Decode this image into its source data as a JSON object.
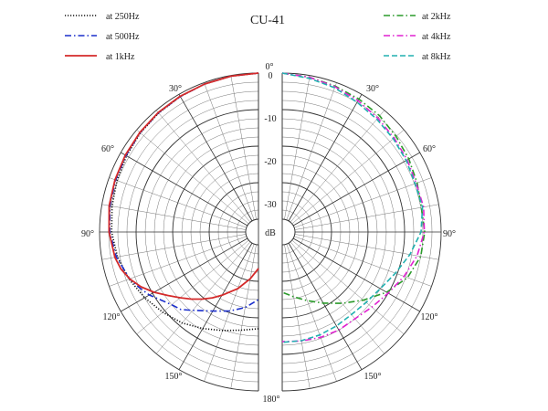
{
  "chart_data": {
    "type": "polar",
    "title": "CU-41",
    "center_label": "dB",
    "angle_labels": [
      "0°",
      "30°",
      "60°",
      "90°",
      "120°",
      "150°",
      "180°"
    ],
    "radial_ticks": [
      "0",
      "-10",
      "-20",
      "-30"
    ],
    "radial_range_db": [
      -40,
      0
    ],
    "angle_range_deg": [
      0,
      180
    ],
    "grid": true,
    "left_half_series": [
      "at 250Hz",
      "at 500Hz",
      "at 1kHz"
    ],
    "right_half_series": [
      "at 2kHz",
      "at 4kHz",
      "at 8kHz"
    ],
    "series": [
      {
        "name": "at 250Hz",
        "color": "#111111",
        "dash": "dotted",
        "side": "left",
        "points": [
          [
            0,
            0
          ],
          [
            10,
            -0.2
          ],
          [
            20,
            -0.4
          ],
          [
            30,
            -0.7
          ],
          [
            40,
            -1.0
          ],
          [
            50,
            -1.3
          ],
          [
            60,
            -1.8
          ],
          [
            70,
            -2.3
          ],
          [
            80,
            -2.8
          ],
          [
            90,
            -3.3
          ],
          [
            100,
            -4.3
          ],
          [
            110,
            -5.8
          ],
          [
            120,
            -7.5
          ],
          [
            130,
            -9.3
          ],
          [
            140,
            -11.0
          ],
          [
            150,
            -13.0
          ],
          [
            160,
            -14.8
          ],
          [
            170,
            -16.2
          ],
          [
            180,
            -17.0
          ]
        ]
      },
      {
        "name": "at 500Hz",
        "color": "#1a2ecc",
        "dash": "dashdot",
        "side": "left",
        "points": [
          [
            0,
            0
          ],
          [
            10,
            -0.2
          ],
          [
            20,
            -0.4
          ],
          [
            30,
            -0.7
          ],
          [
            40,
            -0.9
          ],
          [
            50,
            -1.2
          ],
          [
            60,
            -1.6
          ],
          [
            70,
            -1.9
          ],
          [
            80,
            -2.2
          ],
          [
            90,
            -2.8
          ],
          [
            100,
            -4.0
          ],
          [
            110,
            -6.0
          ],
          [
            115,
            -7.5
          ],
          [
            120,
            -9.0
          ],
          [
            125,
            -11.0
          ],
          [
            130,
            -12.5
          ],
          [
            135,
            -13.5
          ],
          [
            140,
            -15.5
          ],
          [
            150,
            -18.5
          ],
          [
            160,
            -20.5
          ],
          [
            170,
            -22.5
          ],
          [
            180,
            -25.0
          ]
        ]
      },
      {
        "name": "at 1kHz",
        "color": "#d42a2a",
        "dash": "solid",
        "side": "left",
        "points": [
          [
            0,
            0
          ],
          [
            10,
            -0.2
          ],
          [
            20,
            -0.4
          ],
          [
            30,
            -0.6
          ],
          [
            40,
            -0.8
          ],
          [
            50,
            -1.1
          ],
          [
            60,
            -1.4
          ],
          [
            70,
            -1.7
          ],
          [
            80,
            -2.0
          ],
          [
            90,
            -2.6
          ],
          [
            100,
            -3.6
          ],
          [
            105,
            -4.5
          ],
          [
            110,
            -6.0
          ],
          [
            115,
            -8.0
          ],
          [
            120,
            -10.5
          ],
          [
            125,
            -13.2
          ],
          [
            130,
            -15.5
          ],
          [
            135,
            -17.5
          ],
          [
            140,
            -19.5
          ],
          [
            145,
            -21.5
          ],
          [
            150,
            -23.5
          ],
          [
            160,
            -27.0
          ],
          [
            170,
            -30.5
          ],
          [
            180,
            -33.5
          ]
        ]
      },
      {
        "name": "at 2kHz",
        "color": "#2a9a2a",
        "dash": "dashdot",
        "side": "right",
        "points": [
          [
            0,
            0
          ],
          [
            10,
            -0.5
          ],
          [
            20,
            -1.0
          ],
          [
            30,
            -1.5
          ],
          [
            40,
            -2.0
          ],
          [
            50,
            -2.8
          ],
          [
            60,
            -3.5
          ],
          [
            70,
            -4.2
          ],
          [
            80,
            -4.8
          ],
          [
            90,
            -4.5
          ],
          [
            100,
            -5.0
          ],
          [
            110,
            -7.0
          ],
          [
            120,
            -10.5
          ],
          [
            130,
            -14.5
          ],
          [
            140,
            -18.0
          ],
          [
            150,
            -21.0
          ],
          [
            160,
            -23.5
          ],
          [
            170,
            -25.5
          ],
          [
            180,
            -27.0
          ]
        ]
      },
      {
        "name": "at 4kHz",
        "color": "#e020d0",
        "dash": "dashdot",
        "side": "right",
        "points": [
          [
            0,
            0
          ],
          [
            10,
            -0.5
          ],
          [
            20,
            -1.2
          ],
          [
            30,
            -2.0
          ],
          [
            40,
            -2.8
          ],
          [
            50,
            -3.5
          ],
          [
            60,
            -4.0
          ],
          [
            70,
            -4.5
          ],
          [
            80,
            -4.2
          ],
          [
            90,
            -4.6
          ],
          [
            100,
            -6.0
          ],
          [
            110,
            -8.0
          ],
          [
            120,
            -10.0
          ],
          [
            130,
            -11.5
          ],
          [
            140,
            -12.5
          ],
          [
            150,
            -12.5
          ],
          [
            160,
            -12.8
          ],
          [
            170,
            -13.2
          ],
          [
            180,
            -13.5
          ]
        ]
      },
      {
        "name": "at 8kHz",
        "color": "#20b0b0",
        "dash": "dashed",
        "side": "right",
        "points": [
          [
            0,
            0
          ],
          [
            10,
            -0.8
          ],
          [
            20,
            -1.5
          ],
          [
            30,
            -2.5
          ],
          [
            40,
            -3.2
          ],
          [
            50,
            -3.8
          ],
          [
            60,
            -4.3
          ],
          [
            70,
            -4.8
          ],
          [
            80,
            -4.5
          ],
          [
            90,
            -5.5
          ],
          [
            100,
            -8.0
          ],
          [
            110,
            -10.5
          ],
          [
            120,
            -12.5
          ],
          [
            130,
            -13.5
          ],
          [
            140,
            -14.0
          ],
          [
            150,
            -13.8
          ],
          [
            160,
            -13.5
          ],
          [
            170,
            -13.3
          ],
          [
            180,
            -13.3
          ]
        ]
      }
    ]
  }
}
